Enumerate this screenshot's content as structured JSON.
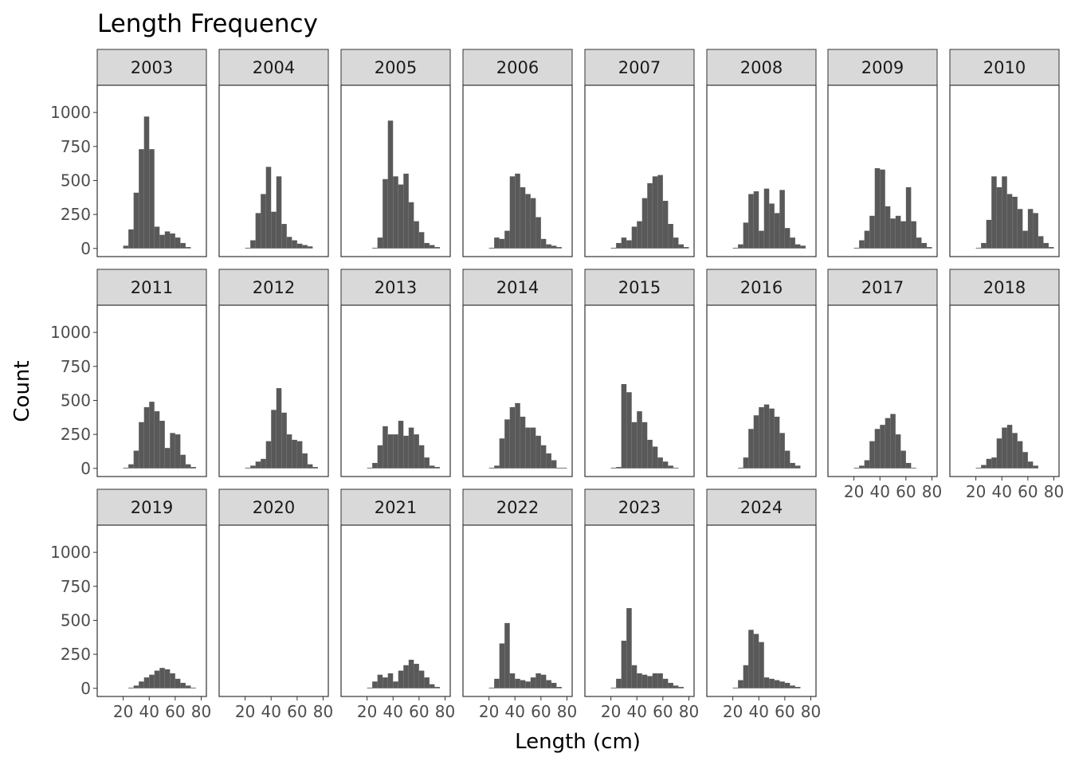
{
  "chart_data": {
    "type": "bar",
    "subtype": "faceted-histogram",
    "title": "Length Frequency",
    "xlabel": "Length (cm)",
    "ylabel": "Count",
    "xlim": [
      0,
      84
    ],
    "ylim": [
      -60,
      1200
    ],
    "x_ticks": [
      20,
      40,
      60,
      80
    ],
    "y_ticks": [
      0,
      250,
      500,
      750,
      1000
    ],
    "bin_width": 4,
    "bin_starts": [
      0,
      4,
      8,
      12,
      16,
      20,
      24,
      28,
      32,
      36,
      40,
      44,
      48,
      52,
      56,
      60,
      64,
      68,
      72,
      76,
      80
    ],
    "grid": false,
    "panels": [
      {
        "label": "2003",
        "values": [
          0,
          0,
          0,
          0,
          0,
          20,
          140,
          410,
          730,
          970,
          730,
          160,
          100,
          125,
          110,
          80,
          40,
          10,
          0,
          0,
          0
        ]
      },
      {
        "label": "2004",
        "values": [
          0,
          0,
          0,
          0,
          0,
          5,
          60,
          260,
          400,
          600,
          270,
          530,
          180,
          85,
          60,
          35,
          25,
          15,
          0,
          0,
          0
        ]
      },
      {
        "label": "2005",
        "values": [
          0,
          0,
          0,
          0,
          0,
          0,
          5,
          80,
          510,
          940,
          530,
          470,
          550,
          340,
          200,
          120,
          40,
          25,
          10,
          0,
          0
        ]
      },
      {
        "label": "2006",
        "values": [
          0,
          0,
          0,
          0,
          0,
          5,
          80,
          70,
          130,
          530,
          550,
          450,
          400,
          370,
          230,
          70,
          30,
          20,
          10,
          0,
          0
        ]
      },
      {
        "label": "2007",
        "values": [
          0,
          0,
          0,
          0,
          0,
          5,
          40,
          80,
          60,
          160,
          200,
          370,
          480,
          530,
          540,
          350,
          180,
          80,
          30,
          10,
          0
        ]
      },
      {
        "label": "2008",
        "values": [
          0,
          0,
          0,
          0,
          0,
          5,
          30,
          190,
          400,
          420,
          130,
          440,
          330,
          260,
          430,
          150,
          80,
          30,
          20,
          0,
          0
        ]
      },
      {
        "label": "2009",
        "values": [
          0,
          0,
          0,
          0,
          0,
          5,
          60,
          130,
          240,
          590,
          580,
          310,
          220,
          240,
          200,
          450,
          200,
          80,
          40,
          10,
          0
        ]
      },
      {
        "label": "2010",
        "values": [
          0,
          0,
          0,
          0,
          0,
          5,
          40,
          210,
          530,
          450,
          530,
          400,
          380,
          290,
          130,
          290,
          260,
          90,
          40,
          10,
          0
        ]
      },
      {
        "label": "2011",
        "values": [
          0,
          0,
          0,
          0,
          0,
          5,
          30,
          130,
          340,
          450,
          490,
          420,
          350,
          150,
          260,
          250,
          100,
          30,
          10,
          0,
          0
        ]
      },
      {
        "label": "2012",
        "values": [
          0,
          0,
          0,
          0,
          0,
          5,
          20,
          50,
          70,
          200,
          430,
          590,
          410,
          250,
          210,
          200,
          110,
          30,
          10,
          0,
          0
        ]
      },
      {
        "label": "2013",
        "values": [
          0,
          0,
          0,
          0,
          0,
          5,
          40,
          170,
          310,
          250,
          250,
          350,
          240,
          300,
          250,
          170,
          80,
          20,
          10,
          0,
          0
        ]
      },
      {
        "label": "2014",
        "values": [
          0,
          0,
          0,
          0,
          0,
          5,
          20,
          220,
          360,
          450,
          480,
          380,
          300,
          300,
          240,
          170,
          110,
          60,
          5,
          5,
          0
        ]
      },
      {
        "label": "2015",
        "values": [
          0,
          0,
          0,
          0,
          0,
          5,
          10,
          620,
          560,
          340,
          420,
          340,
          210,
          160,
          80,
          50,
          20,
          5,
          0,
          0,
          0
        ]
      },
      {
        "label": "2016",
        "values": [
          0,
          0,
          0,
          0,
          0,
          0,
          5,
          80,
          290,
          390,
          450,
          470,
          440,
          380,
          260,
          130,
          40,
          20,
          0,
          0,
          0
        ]
      },
      {
        "label": "2017",
        "values": [
          0,
          0,
          0,
          0,
          0,
          5,
          20,
          60,
          200,
          290,
          320,
          370,
          400,
          250,
          130,
          40,
          5,
          0,
          0,
          0,
          0
        ]
      },
      {
        "label": "2018",
        "values": [
          0,
          0,
          0,
          0,
          0,
          5,
          25,
          70,
          80,
          220,
          300,
          320,
          260,
          200,
          120,
          50,
          20,
          0,
          0,
          0,
          0
        ]
      },
      {
        "label": "2019",
        "values": [
          0,
          0,
          0,
          0,
          0,
          0,
          5,
          20,
          50,
          80,
          100,
          130,
          150,
          140,
          110,
          70,
          40,
          20,
          5,
          0,
          0
        ]
      },
      {
        "label": "2020",
        "values": [
          0,
          0,
          0,
          0,
          0,
          0,
          0,
          0,
          0,
          0,
          0,
          0,
          0,
          0,
          0,
          0,
          0,
          0,
          0,
          0,
          0
        ]
      },
      {
        "label": "2021",
        "values": [
          0,
          0,
          0,
          0,
          0,
          5,
          50,
          100,
          80,
          110,
          50,
          130,
          170,
          210,
          180,
          130,
          80,
          30,
          10,
          0,
          0
        ]
      },
      {
        "label": "2022",
        "values": [
          0,
          0,
          0,
          0,
          0,
          5,
          70,
          330,
          480,
          110,
          70,
          60,
          50,
          80,
          110,
          100,
          60,
          40,
          10,
          0,
          0
        ]
      },
      {
        "label": "2023",
        "values": [
          0,
          0,
          0,
          0,
          0,
          5,
          70,
          350,
          590,
          170,
          110,
          100,
          90,
          110,
          110,
          70,
          40,
          20,
          10,
          0,
          0
        ]
      },
      {
        "label": "2024",
        "values": [
          0,
          0,
          0,
          0,
          0,
          5,
          60,
          170,
          430,
          400,
          340,
          80,
          70,
          60,
          50,
          40,
          20,
          10,
          0,
          0,
          0
        ]
      }
    ]
  }
}
